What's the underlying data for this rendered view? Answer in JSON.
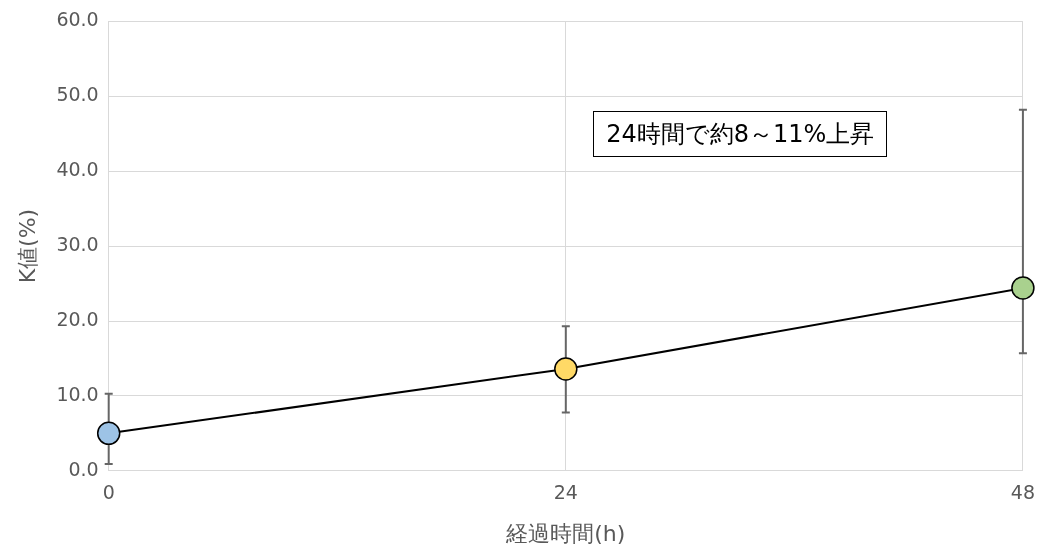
{
  "chart_data": {
    "type": "line",
    "xlabel": "経過時間(h)",
    "ylabel": "K値(%)",
    "x": [
      0,
      24,
      48
    ],
    "series": [
      {
        "color": "#000000",
        "colors": [
          "#9dc3e6",
          "#ffd966",
          "#a9d18e"
        ],
        "values": [
          5.0,
          13.6,
          24.4
        ],
        "errors": [
          [
            0.9,
            10.3
          ],
          [
            7.8,
            19.3
          ],
          [
            15.7,
            48.2
          ]
        ]
      }
    ],
    "xlim": [
      0,
      48
    ],
    "xticks": [
      0,
      24,
      48
    ],
    "ylim": [
      0,
      60
    ],
    "yticks": [
      {
        "value": 0,
        "label": "0.0"
      },
      {
        "value": 10,
        "label": "10.0"
      },
      {
        "value": 20,
        "label": "20.0"
      },
      {
        "value": 30,
        "label": "30.0"
      },
      {
        "value": 40,
        "label": "40.0"
      },
      {
        "value": 50,
        "label": "50.0"
      },
      {
        "value": 60,
        "label": "60.0"
      }
    ],
    "annotations": [
      "24時間で約8～11%上昇"
    ],
    "grid": true,
    "legend": false,
    "marker": "circle",
    "line_style": "solid"
  }
}
